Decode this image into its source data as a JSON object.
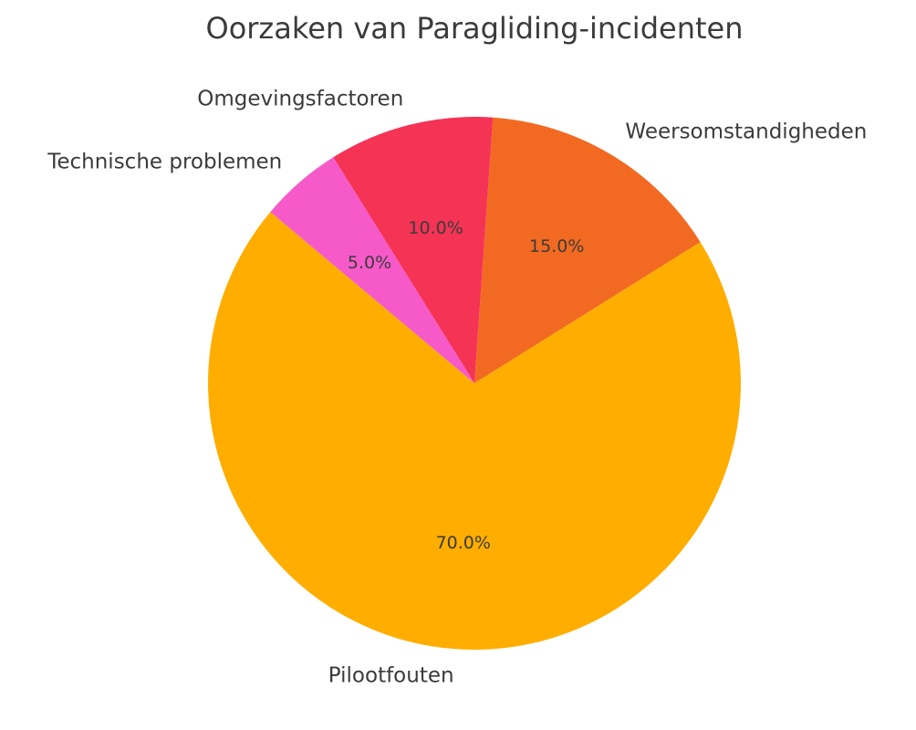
{
  "chart_data": {
    "type": "pie",
    "title": "Oorzaken van Paragliding-incidenten",
    "slices": [
      {
        "label": "Pilootfouten",
        "value": 70.0,
        "pct_label": "70.0%",
        "color": "#ffae00"
      },
      {
        "label": "Weersomstandigheden",
        "value": 15.0,
        "pct_label": "15.0%",
        "color": "#f26a21"
      },
      {
        "label": "Omgevingsfactoren",
        "value": 10.0,
        "pct_label": "10.0%",
        "color": "#f53355"
      },
      {
        "label": "Technische problemen",
        "value": 5.0,
        "pct_label": "5.0%",
        "color": "#f65ac8"
      }
    ],
    "start_angle_deg": 140,
    "direction": "counterclockwise",
    "legend": "none",
    "grid": false
  }
}
